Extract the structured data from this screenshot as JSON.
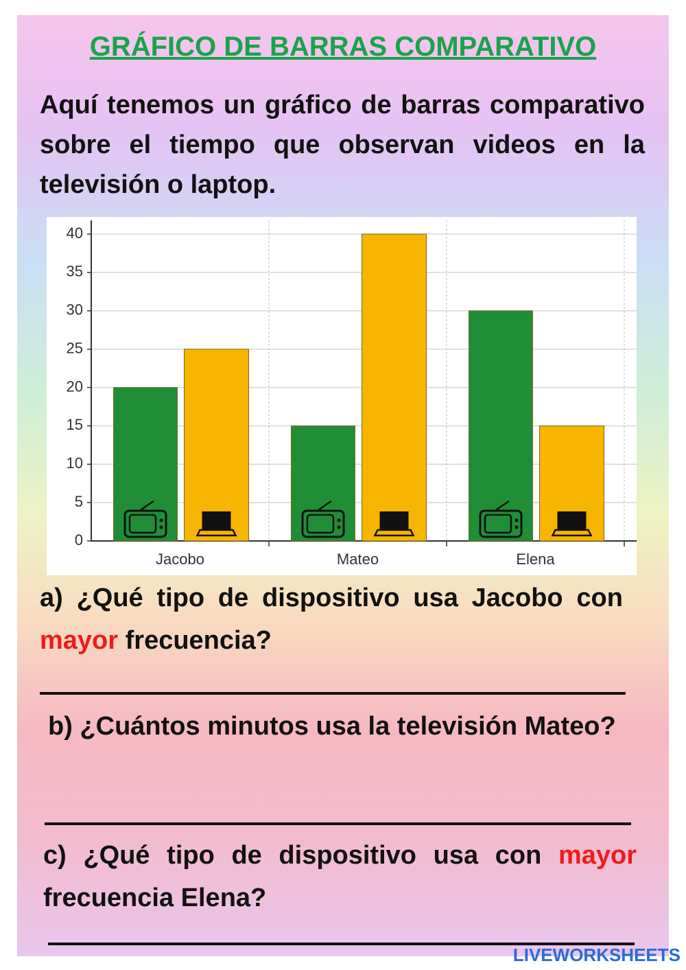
{
  "title": "GRÁFICO DE BARRAS COMPARATIVO",
  "intro": "Aquí tenemos un gráfico de barras comparativo sobre el tiempo que observan videos en la televisión o laptop.",
  "chart_data": {
    "type": "bar",
    "categories": [
      "Jacobo",
      "Mateo",
      "Elena"
    ],
    "series": [
      {
        "color": "#1f8e37",
        "values": [
          20,
          15,
          30
        ]
      },
      {
        "color": "#f7b500",
        "values": [
          25,
          40,
          15
        ]
      }
    ],
    "ylim": [
      0,
      40
    ],
    "yticks": [
      0,
      5,
      10,
      15,
      20,
      25,
      30,
      35,
      40
    ],
    "grid": true
  },
  "questions": [
    {
      "before": "a) ¿Qué tipo de dispositivo usa Jacobo con ",
      "highlight": "mayor",
      "after": " frecuencia?"
    },
    {
      "text": "b) ¿Cuántos minutos usa la televisión Mateo?"
    },
    {
      "before": "c) ¿Qué tipo de dispositivo usa con ",
      "highlight": "mayor",
      "after": " frecuencia Elena?"
    }
  ],
  "footer": "LIVEWORKSHEETS"
}
